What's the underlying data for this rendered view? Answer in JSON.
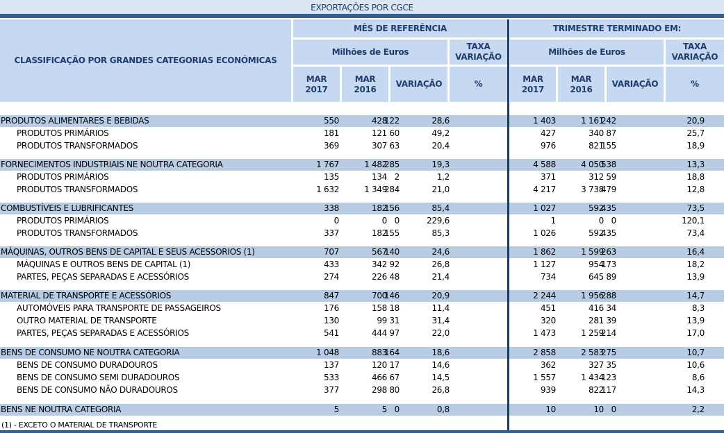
{
  "title": "EXPORTAÇÕES POR CGCE",
  "header": {
    "classification": "CLASSIFICAÇÃO POR GRANDES CATEGORIAS ECONÓMICAS",
    "month_ref": "MÊS DE REFERÊNCIA",
    "quarter": "TRIMESTRE TERMINADO EM:",
    "millions": "Milhões de Euros",
    "rate": "TAXA VARIAÇÃO",
    "mar2017": "MAR 2017",
    "mar2016": "MAR 2016",
    "variation": "VARIAÇÃO",
    "pct": "%"
  },
  "groups": [
    {
      "label": "PRODUTOS ALIMENTARES E BEBIDAS",
      "values": [
        "550",
        "428",
        "122",
        "28,6",
        "1 403",
        "1 161",
        "242",
        "20,9"
      ],
      "rows": [
        {
          "label": "PRODUTOS PRIMÁRIOS",
          "values": [
            "181",
            "121",
            "60",
            "49,2",
            "427",
            "340",
            "87",
            "25,7"
          ]
        },
        {
          "label": "PRODUTOS TRANSFORMADOS",
          "values": [
            "369",
            "307",
            "63",
            "20,4",
            "976",
            "821",
            "155",
            "18,9"
          ]
        }
      ]
    },
    {
      "label": "FORNECIMENTOS INDUSTRIAIS NE NOUTRA CATEGORIA",
      "values": [
        "1 767",
        "1 482",
        "285",
        "19,3",
        "4 588",
        "4 050",
        "538",
        "13,3"
      ],
      "rows": [
        {
          "label": "PRODUTOS PRIMÁRIOS",
          "values": [
            "135",
            "134",
            "2",
            "1,2",
            "371",
            "312",
            "59",
            "18,8"
          ]
        },
        {
          "label": "PRODUTOS TRANSFORMADOS",
          "values": [
            "1 632",
            "1 349",
            "284",
            "21,0",
            "4 217",
            "3 738",
            "479",
            "12,8"
          ]
        }
      ]
    },
    {
      "label": "COMBUSTÍVEIS E LUBRIFICANTES",
      "values": [
        "338",
        "182",
        "156",
        "85,4",
        "1 027",
        "592",
        "435",
        "73,5"
      ],
      "rows": [
        {
          "label": "PRODUTOS PRIMÁRIOS",
          "values": [
            "0",
            "0",
            "0",
            "229,6",
            "1",
            "0",
            "0",
            "120,1"
          ]
        },
        {
          "label": "PRODUTOS TRANSFORMADOS",
          "values": [
            "337",
            "182",
            "155",
            "85,3",
            "1 026",
            "592",
            "435",
            "73,4"
          ]
        }
      ]
    },
    {
      "label": "MÁQUINAS, OUTROS BENS DE CAPITAL E SEUS ACESSORIOS (1)",
      "values": [
        "707",
        "567",
        "140",
        "24,6",
        "1 862",
        "1 599",
        "263",
        "16,4"
      ],
      "rows": [
        {
          "label": "MÁQUINAS E OUTROS BENS DE CAPITAL (1)",
          "values": [
            "433",
            "342",
            "92",
            "26,8",
            "1 127",
            "954",
            "173",
            "18,2"
          ]
        },
        {
          "label": "PARTES, PEÇAS SEPARADAS E ACESSÓRIOS",
          "values": [
            "274",
            "226",
            "48",
            "21,4",
            "734",
            "645",
            "89",
            "13,9"
          ]
        }
      ]
    },
    {
      "label": "MATERIAL DE TRANSPORTE E ACESSÓRIOS",
      "values": [
        "847",
        "700",
        "146",
        "20,9",
        "2 244",
        "1 956",
        "288",
        "14,7"
      ],
      "rows": [
        {
          "label": "AUTOMÓVEIS PARA TRANSPORTE  DE PASSAGEIROS",
          "values": [
            "176",
            "158",
            "18",
            "11,4",
            "451",
            "416",
            "34",
            "8,3"
          ]
        },
        {
          "label": "OUTRO MATERIAL DE TRANSPORTE",
          "values": [
            "130",
            "99",
            "31",
            "31,4",
            "320",
            "281",
            "39",
            "13,9"
          ]
        },
        {
          "label": "PARTES, PEÇAS SEPARADAS E ACESSÓRIOS",
          "values": [
            "541",
            "444",
            "97",
            "22,0",
            "1 473",
            "1 259",
            "214",
            "17,0"
          ]
        }
      ]
    },
    {
      "label": "BENS DE CONSUMO NE NOUTRA CATEGORIA",
      "values": [
        "1 048",
        "883",
        "164",
        "18,6",
        "2 858",
        "2 583",
        "275",
        "10,7"
      ],
      "rows": [
        {
          "label": "BENS DE CONSUMO DURADOUROS",
          "values": [
            "137",
            "120",
            "17",
            "14,6",
            "362",
            "327",
            "35",
            "10,6"
          ]
        },
        {
          "label": "BENS DE CONSUMO SEMI DURADOUROS",
          "values": [
            "533",
            "466",
            "67",
            "14,5",
            "1 557",
            "1 434",
            "123",
            "8,6"
          ]
        },
        {
          "label": "BENS DE CONSUMO NÃO DURADOUROS",
          "values": [
            "377",
            "298",
            "80",
            "26,8",
            "939",
            "822",
            "117",
            "14,3"
          ]
        }
      ]
    },
    {
      "label": "BENS NE NOUTRA CATEGORIA",
      "values": [
        "5",
        "5",
        "0",
        "0,8",
        "10",
        "10",
        "0",
        "2,2"
      ],
      "rows": []
    }
  ],
  "footnote": "(1) - EXCETO O MATERIAL DE TRANSPORTE"
}
